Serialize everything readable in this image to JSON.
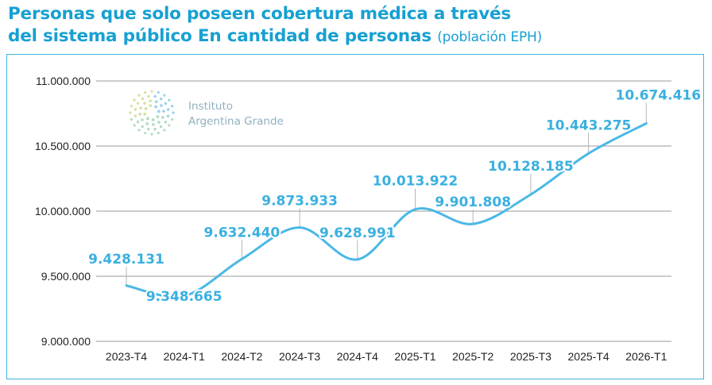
{
  "title": {
    "line1": "Personas que solo poseen cobertura médica a través",
    "line2": "del sistema público En cantidad de personas",
    "subtitle": "(población EPH)"
  },
  "logo": {
    "line1": "Instituto",
    "line2": "Argentina Grande",
    "icon": "dotted-circle-logo-icon"
  },
  "colors": {
    "title": "#17a0d2",
    "line": "#4ab8e6",
    "label": "#3ab0e0",
    "grid": "#9a9a9a",
    "frame": "#3fb3dd"
  },
  "chart_data": {
    "type": "line",
    "title": "Personas que solo poseen cobertura médica a través del sistema público En cantidad de personas (población EPH)",
    "xlabel": "",
    "ylabel": "",
    "categories": [
      "2023-T4",
      "2024-T1",
      "2024-T2",
      "2024-T3",
      "2024-T4",
      "2025-T1",
      "2025-T2",
      "2025-T3",
      "2025-T4",
      "2026-T1"
    ],
    "values": [
      9428131,
      9348665,
      9632440,
      9873933,
      9628991,
      10013922,
      9901808,
      10128185,
      10443275,
      10674416
    ],
    "value_labels": [
      "9.428.131",
      "9.348.665",
      "9.632.440",
      "9.873.933",
      "9.628.991",
      "10.013.922",
      "9.901.808",
      "10.128.185",
      "10.443.275",
      "10.674.416"
    ],
    "yticks": [
      9000000,
      9500000,
      10000000,
      10500000,
      11000000
    ],
    "ytick_labels": [
      "9.000.000",
      "9.500.000",
      "10.000.000",
      "10.500.000",
      "11.000.000"
    ],
    "ylim": [
      9000000,
      11000000
    ],
    "grid": true,
    "legend": "none",
    "smooth": true
  }
}
